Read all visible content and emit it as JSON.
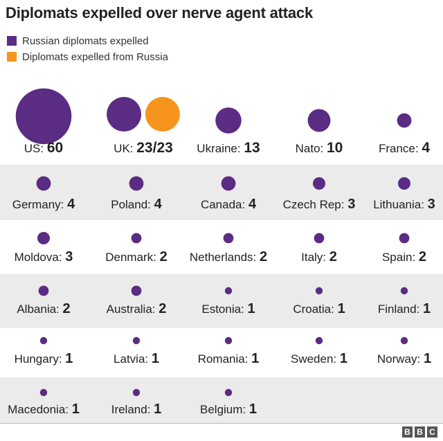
{
  "title": "Diplomats expelled over nerve agent attack",
  "legend": [
    {
      "label": "Russian diplomats expelled",
      "color": "#5b2c83"
    },
    {
      "label": "Diplomats expelled from Russia",
      "color": "#f7941d"
    }
  ],
  "colors": {
    "band": "#ebebeb",
    "russian": "#5b2c83",
    "from_russia": "#f7941d"
  },
  "chart_data": {
    "type": "bubble-grid",
    "title": "Diplomats expelled over nerve agent attack",
    "entries": [
      {
        "country": "US",
        "label": "US: ",
        "value_text": "60",
        "values": [
          60
        ]
      },
      {
        "country": "UK",
        "label": "UK: ",
        "value_text": "23/23",
        "values": [
          23,
          23
        ]
      },
      {
        "country": "Ukraine",
        "label": "Ukraine: ",
        "value_text": "13",
        "values": [
          13
        ]
      },
      {
        "country": "Nato",
        "label": "Nato: ",
        "value_text": "10",
        "values": [
          10
        ]
      },
      {
        "country": "France",
        "label": "France: ",
        "value_text": "4",
        "values": [
          4
        ]
      },
      {
        "country": "Germany",
        "label": "Germany: ",
        "value_text": "4",
        "values": [
          4
        ]
      },
      {
        "country": "Poland",
        "label": "Poland: ",
        "value_text": "4",
        "values": [
          4
        ]
      },
      {
        "country": "Canada",
        "label": "Canada: ",
        "value_text": "4",
        "values": [
          4
        ]
      },
      {
        "country": "Czech Rep",
        "label": "Czech Rep: ",
        "value_text": "3",
        "values": [
          3
        ]
      },
      {
        "country": "Lithuania",
        "label": "Lithuania: ",
        "value_text": "3",
        "values": [
          3
        ]
      },
      {
        "country": "Moldova",
        "label": "Moldova: ",
        "value_text": "3",
        "values": [
          3
        ]
      },
      {
        "country": "Denmark",
        "label": "Denmark: ",
        "value_text": "2",
        "values": [
          2
        ]
      },
      {
        "country": "Netherlands",
        "label": "Netherlands: ",
        "value_text": "2",
        "values": [
          2
        ]
      },
      {
        "country": "Italy",
        "label": "Italy: ",
        "value_text": "2",
        "values": [
          2
        ]
      },
      {
        "country": "Spain",
        "label": "Spain: ",
        "value_text": "2",
        "values": [
          2
        ]
      },
      {
        "country": "Albania",
        "label": "Albania: ",
        "value_text": "2",
        "values": [
          2
        ]
      },
      {
        "country": "Australia",
        "label": "Australia: ",
        "value_text": "2",
        "values": [
          2
        ]
      },
      {
        "country": "Estonia",
        "label": "Estonia: ",
        "value_text": "1",
        "values": [
          1
        ]
      },
      {
        "country": "Croatia",
        "label": "Croatia: ",
        "value_text": "1",
        "values": [
          1
        ]
      },
      {
        "country": "Finland",
        "label": "Finland: ",
        "value_text": "1",
        "values": [
          1
        ]
      },
      {
        "country": "Hungary",
        "label": "Hungary: ",
        "value_text": "1",
        "values": [
          1
        ]
      },
      {
        "country": "Latvia",
        "label": "Latvia: ",
        "value_text": "1",
        "values": [
          1
        ]
      },
      {
        "country": "Romania",
        "label": "Romania: ",
        "value_text": "1",
        "values": [
          1
        ]
      },
      {
        "country": "Sweden",
        "label": "Sweden: ",
        "value_text": "1",
        "values": [
          1
        ]
      },
      {
        "country": "Norway",
        "label": "Norway: ",
        "value_text": "1",
        "values": [
          1
        ]
      },
      {
        "country": "Macedonia",
        "label": "Macedonia: ",
        "value_text": "1",
        "values": [
          1
        ]
      },
      {
        "country": "Ireland",
        "label": "Ireland: ",
        "value_text": "1",
        "values": [
          1
        ]
      },
      {
        "country": "Belgium",
        "label": "Belgium: ",
        "value_text": "1",
        "values": [
          1
        ]
      }
    ]
  },
  "footer": {
    "logo": [
      "B",
      "B",
      "C"
    ]
  }
}
